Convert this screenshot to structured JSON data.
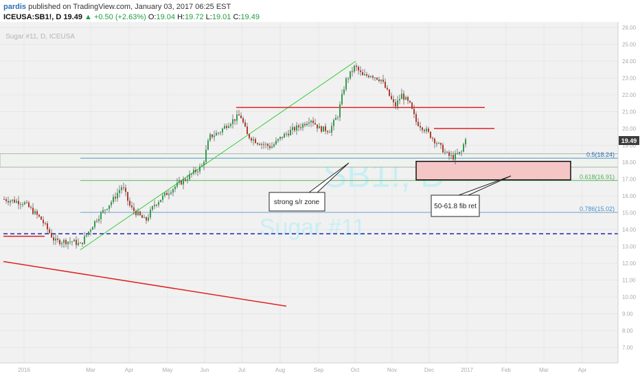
{
  "header": {
    "author": "pardis",
    "published": "published on TradingView.com, January 03, 2017 06:25 EST",
    "symbol": "ICEUSA:SB1!, D",
    "last": "19.49",
    "change": "▲ +0.50 (+2.63%)",
    "open_label": "O:",
    "open": "19.04",
    "high_label": "H:",
    "high": "19.72",
    "low_label": "L:",
    "low": "19.01",
    "close_label": "C:",
    "close": "19.49"
  },
  "chart_data": {
    "type": "candlestick",
    "legend": "Sugar #11, D, ICEUSA",
    "watermark": {
      "symbol": "SB1!, D",
      "name": "Sugar #11"
    },
    "ylim": [
      6.8,
      26.3
    ],
    "y_ticks": [
      "26.00",
      "25.00",
      "24.00",
      "23.00",
      "22.00",
      "21.00",
      "20.00",
      "19.00",
      "18.00",
      "17.00",
      "16.00",
      "15.00",
      "14.00",
      "13.00",
      "12.00",
      "11.00",
      "10.00",
      "9.00",
      "8.00",
      "7.00"
    ],
    "x_ticks": [
      "2016",
      "Mar",
      "Apr",
      "May",
      "Jun",
      "Jul",
      "Aug",
      "Sep",
      "Oct",
      "Nov",
      "Dec",
      "2017",
      "Feb",
      "Mar",
      "Apr"
    ],
    "last_price": "19.49",
    "fib_levels": [
      {
        "label": "0.5(18.24)",
        "value": 18.24,
        "color": "#2b6fb6"
      },
      {
        "label": "0.618(16.91)",
        "value": 16.91,
        "color": "#4caf50"
      },
      {
        "label": "0.786(15.02)",
        "value": 15.02,
        "color": "#4a90c8"
      }
    ],
    "support_line": 13.75,
    "resistance_lines": [
      21.25,
      20.0
    ],
    "zone_box": [
      16.95,
      18.05
    ],
    "annotations": [
      "strong s/r zone",
      "50-61.8 fib ret"
    ],
    "colors": {
      "up": "#2e9e4c",
      "down": "#b3392b",
      "trend": "#e02020",
      "channel": "#33cc33",
      "zone": "#f4c6c6"
    }
  }
}
